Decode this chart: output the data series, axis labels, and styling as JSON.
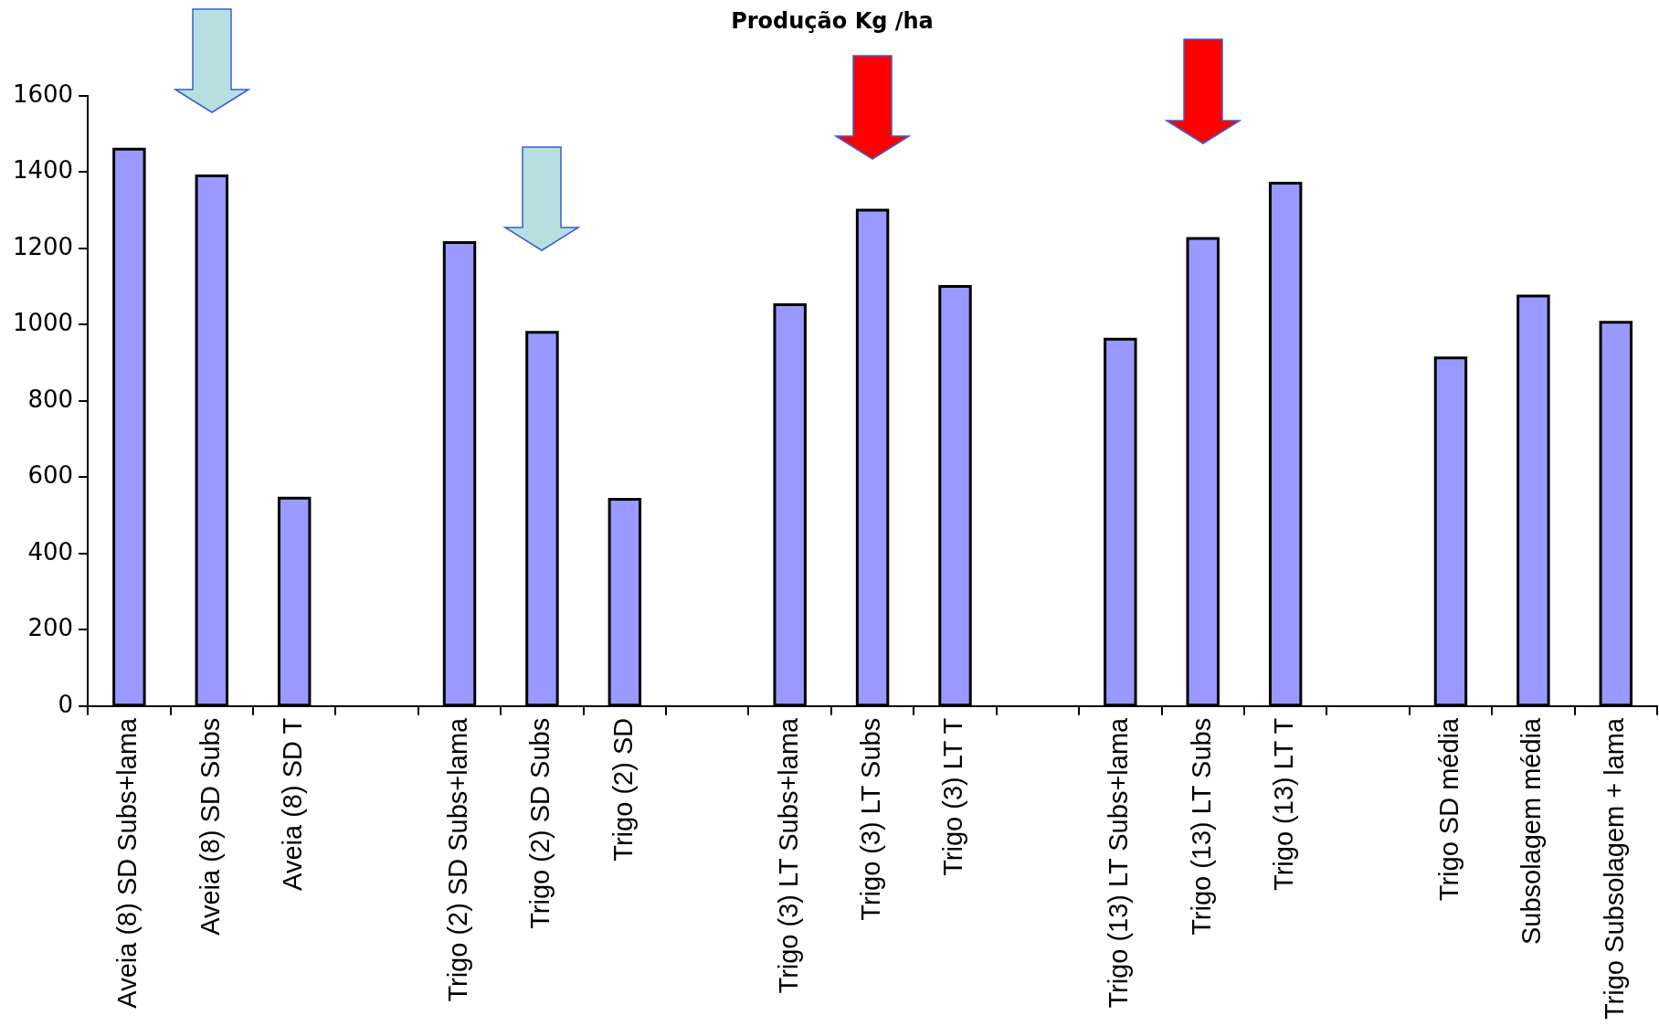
{
  "chart_data": {
    "type": "bar",
    "title": "Produção Kg /ha",
    "categories": [
      "Aveia (8) SD Subs+lama",
      "Aveia (8) SD Subs",
      "Aveia (8) SD T",
      null,
      "Trigo (2) SD Subs+lama",
      "Trigo (2) SD Subs",
      "Trigo (2) SD",
      null,
      "Trigo (3) LT Subs+lama",
      "Trigo (3) LT Subs",
      "Trigo (3) LT T",
      null,
      "Trigo (13) LT Subs+lama",
      "Trigo (13) LT Subs",
      "Trigo (13) LT T",
      null,
      "Trigo SD média",
      "Subsolagem média",
      "Trigo Subsolagem + lama"
    ],
    "values": [
      1460,
      1390,
      545,
      null,
      1215,
      980,
      542,
      null,
      1052,
      1300,
      1100,
      null,
      962,
      1226,
      1371,
      null,
      913,
      1075,
      1006
    ],
    "color": "#9999ff",
    "ylim": [
      0,
      1600
    ],
    "yticks": [
      0,
      200,
      400,
      600,
      800,
      1000,
      1200,
      1400,
      1600
    ],
    "grid": false,
    "legend": false
  }
}
